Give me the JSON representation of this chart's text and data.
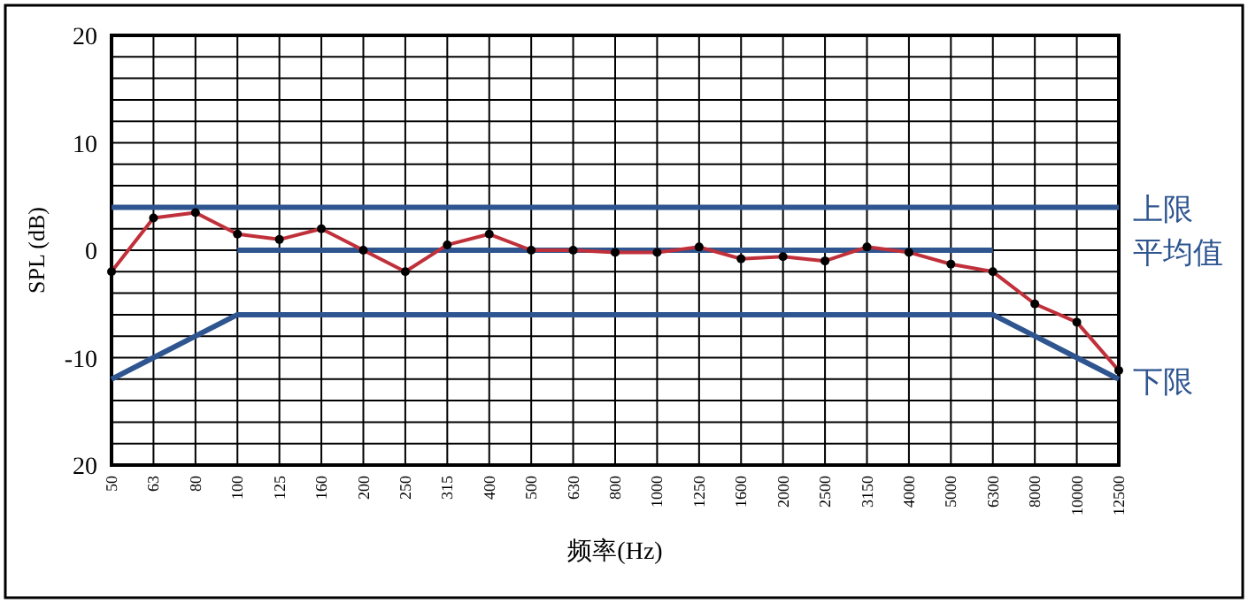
{
  "chart_data": {
    "type": "line",
    "xlabel": "频率(Hz)",
    "ylabel": "SPL (dB)",
    "categories": [
      "50",
      "63",
      "80",
      "100",
      "125",
      "160",
      "200",
      "250",
      "315",
      "400",
      "500",
      "630",
      "800",
      "1000",
      "1250",
      "1600",
      "2000",
      "2500",
      "3150",
      "4000",
      "5000",
      "6300",
      "8000",
      "10000",
      "12500"
    ],
    "ylim": [
      -20,
      20
    ],
    "yticks": [
      {
        "value": -20,
        "label": "20"
      },
      {
        "value": -18,
        "label": null
      },
      {
        "value": -16,
        "label": null
      },
      {
        "value": -14,
        "label": null
      },
      {
        "value": -12,
        "label": null
      },
      -10,
      {
        "value": -8,
        "label": null
      },
      {
        "value": -6,
        "label": null
      },
      {
        "value": -4,
        "label": null
      },
      {
        "value": -2,
        "label": null
      },
      0,
      {
        "value": 2,
        "label": null
      },
      {
        "value": 6,
        "label": null
      },
      {
        "value": 8,
        "label": null
      },
      10,
      {
        "value": 12,
        "label": null
      },
      {
        "value": 14,
        "label": null
      },
      {
        "value": 16,
        "label": null
      },
      {
        "value": 18,
        "label": null
      },
      20
    ],
    "grid": true,
    "legend": false,
    "line_style": "solid",
    "series": [
      {
        "color": "#c0303a",
        "marker": "circle",
        "values": [
          -2,
          3,
          3.5,
          1.5,
          1,
          2,
          0,
          -2,
          0.5,
          1.5,
          0,
          0,
          -0.2,
          -0.2,
          0.3,
          -0.8,
          -0.6,
          -1,
          0.3,
          -0.2,
          -1.3,
          -2,
          -5,
          -6.7,
          -11.2
        ]
      },
      {
        "name": "上限",
        "color": "#2e5590",
        "marker": "none",
        "values": [
          4,
          4,
          4,
          4,
          4,
          4,
          4,
          4,
          4,
          4,
          4,
          4,
          4,
          4,
          4,
          4,
          4,
          4,
          4,
          4,
          4,
          4,
          4,
          4,
          4
        ]
      },
      {
        "name": "平均值",
        "color": "#2e5590",
        "marker": "none",
        "values": [
          null,
          null,
          null,
          0,
          0,
          0,
          0,
          0,
          0,
          0,
          0,
          0,
          0,
          0,
          0,
          0,
          0,
          0,
          0,
          0,
          0,
          0,
          null,
          null,
          null
        ]
      },
      {
        "name": "下限",
        "color": "#2e5590",
        "marker": "none",
        "values": [
          -12,
          -10,
          -8,
          -6,
          -6,
          -6,
          -6,
          -6,
          -6,
          -6,
          -6,
          -6,
          -6,
          -6,
          -6,
          -6,
          -6,
          -6,
          -6,
          -6,
          -6,
          -6,
          -8,
          -10,
          -12
        ]
      }
    ]
  }
}
